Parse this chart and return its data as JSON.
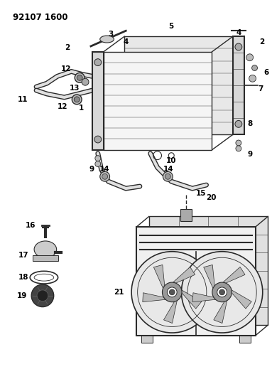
{
  "title_code": "92107 1600",
  "bg_color": "#ffffff",
  "line_color": "#2a2a2a",
  "label_color": "#000000",
  "fig_width": 3.83,
  "fig_height": 5.33,
  "dpi": 100
}
